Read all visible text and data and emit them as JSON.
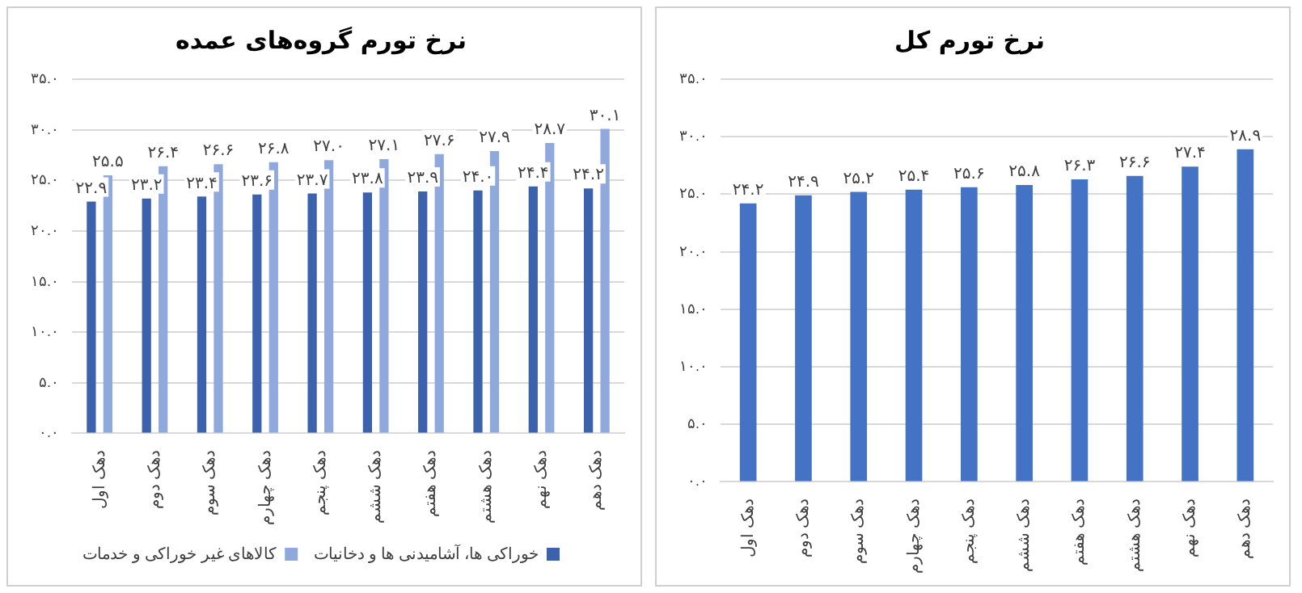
{
  "chart_data": [
    {
      "type": "bar",
      "title": "نرخ تورم گروه‌های عمده",
      "categories": [
        "دهک اول",
        "دهک دوم",
        "دهک سوم",
        "دهک چهارم",
        "دهک پنجم",
        "دهک ششم",
        "دهک هفتم",
        "دهک هشتم",
        "دهک نهم",
        "دهک دهم"
      ],
      "series": [
        {
          "name": "خوراکی ها، آشامیدنی ها و دخانیات",
          "color": "#3d62ad",
          "values": [
            22.9,
            23.2,
            23.4,
            23.6,
            23.7,
            23.8,
            23.9,
            24.0,
            24.4,
            24.2
          ],
          "value_labels": [
            "۲۲.۹",
            "۲۳.۲",
            "۲۳.۴",
            "۲۳.۶",
            "۲۳.۷",
            "۲۳.۸",
            "۲۳.۹",
            "۲۴.۰",
            "۲۴.۴",
            "۲۴.۲"
          ]
        },
        {
          "name": "کالاهای غیر خوراکی و خدمات",
          "color": "#8fa9dc",
          "values": [
            25.5,
            26.4,
            26.6,
            26.8,
            27.0,
            27.1,
            27.6,
            27.9,
            28.7,
            30.1
          ],
          "value_labels": [
            "۲۵.۵",
            "۲۶.۴",
            "۲۶.۶",
            "۲۶.۸",
            "۲۷.۰",
            "۲۷.۱",
            "۲۷.۶",
            "۲۷.۹",
            "۲۸.۷",
            "۳۰.۱"
          ]
        }
      ],
      "ylim": [
        0,
        35
      ],
      "yticks": [
        {
          "value": 0,
          "label": "۰.۰"
        },
        {
          "value": 5,
          "label": "۵.۰"
        },
        {
          "value": 10,
          "label": "۱۰.۰"
        },
        {
          "value": 15,
          "label": "۱۵.۰"
        },
        {
          "value": 20,
          "label": "۲۰.۰"
        },
        {
          "value": 25,
          "label": "۲۵.۰"
        },
        {
          "value": 30,
          "label": "۳۰.۰"
        },
        {
          "value": 35,
          "label": "۳۵.۰"
        }
      ],
      "grid": "y",
      "legend": "bottom"
    },
    {
      "type": "bar",
      "title": "نرخ تورم کل",
      "categories": [
        "دهک اول",
        "دهک دوم",
        "دهک سوم",
        "دهک چهارم",
        "دهک پنجم",
        "دهک ششم",
        "دهک هفتم",
        "دهک هشتم",
        "دهک نهم",
        "دهک دهم"
      ],
      "series": [
        {
          "color": "#4472c4",
          "values": [
            24.2,
            24.9,
            25.2,
            25.4,
            25.6,
            25.8,
            26.3,
            26.6,
            27.4,
            28.9
          ],
          "value_labels": [
            "۲۴.۲",
            "۲۴.۹",
            "۲۵.۲",
            "۲۵.۴",
            "۲۵.۶",
            "۲۵.۸",
            "۲۶.۳",
            "۲۶.۶",
            "۲۷.۴",
            "۲۸.۹"
          ]
        }
      ],
      "ylim": [
        0,
        35
      ],
      "yticks": [
        {
          "value": 0,
          "label": "۰.۰"
        },
        {
          "value": 5,
          "label": "۵.۰"
        },
        {
          "value": 10,
          "label": "۱۰.۰"
        },
        {
          "value": 15,
          "label": "۱۵.۰"
        },
        {
          "value": 20,
          "label": "۲۰.۰"
        },
        {
          "value": 25,
          "label": "۲۵.۰"
        },
        {
          "value": 30,
          "label": "۳۰.۰"
        },
        {
          "value": 35,
          "label": "۳۵.۰"
        }
      ],
      "grid": "y",
      "legend": false
    }
  ]
}
